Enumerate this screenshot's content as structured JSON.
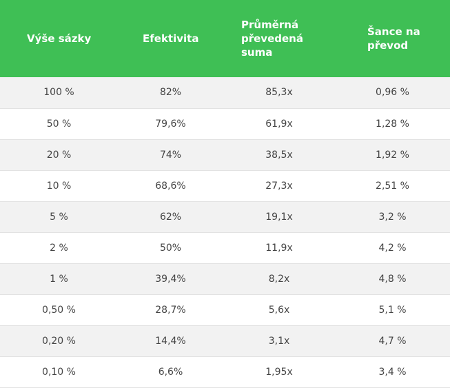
{
  "table": {
    "headers": [
      "Výše sázky",
      "Efektivita",
      "Průměrná převedená suma",
      "Šance na převod"
    ],
    "rows": [
      [
        "100 %",
        "82%",
        "85,3x",
        "0,96 %"
      ],
      [
        "50 %",
        "79,6%",
        "61,9x",
        "1,28 %"
      ],
      [
        "20 %",
        "74%",
        "38,5x",
        "1,92 %"
      ],
      [
        "10 %",
        "68,6%",
        "27,3x",
        "2,51 %"
      ],
      [
        "5 %",
        "62%",
        "19,1x",
        "3,2 %"
      ],
      [
        "2 %",
        "50%",
        "11,9x",
        "4,2 %"
      ],
      [
        "1 %",
        "39,4%",
        "8,2x",
        "4,8 %"
      ],
      [
        "0,50 %",
        "28,7%",
        "5,6x",
        "5,1 %"
      ],
      [
        "0,20 %",
        "14,4%",
        "3,1x",
        "4,7 %"
      ],
      [
        "0,10 %",
        "6,6%",
        "1,95x",
        "3,4 %"
      ]
    ]
  },
  "colors": {
    "header_bg": "#3fbf55",
    "header_text": "#ffffff",
    "row_odd_bg": "#f2f2f2",
    "row_even_bg": "#ffffff",
    "cell_text": "#444444"
  }
}
